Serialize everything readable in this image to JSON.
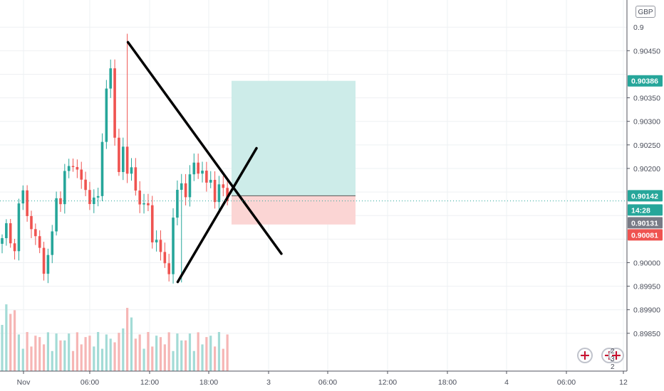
{
  "chart_data": {
    "type": "candlestick",
    "instrument_currency": "GBP",
    "price_axis": {
      "range": [
        0.89815,
        0.90535
      ],
      "ticks": [
        "0.90450",
        "0.90350",
        "0.90300",
        "0.90250",
        "0.90200",
        "0.90000",
        "0.89950",
        "0.89900",
        "0.89850"
      ],
      "top_partial_tick": "0.9",
      "grid": true
    },
    "time_axis": {
      "ticks": [
        "Nov",
        "06:00",
        "12:00",
        "18:00",
        "3",
        "06:00",
        "12:00",
        "18:00",
        "4",
        "06:00",
        "12"
      ],
      "grid": true
    },
    "price_tags": [
      {
        "label": "0.90386",
        "value": 0.90386,
        "color": "#26a69a"
      },
      {
        "label": "0.90142",
        "value": 0.90142,
        "color": "#26a69a"
      },
      {
        "label": "14:28",
        "value": 0.90117,
        "color": "#26a69a"
      },
      {
        "label": "0.90131",
        "value": 0.90131,
        "color": "#787b86"
      },
      {
        "label": "0.90081",
        "value": 0.90081,
        "color": "#ef5350"
      }
    ],
    "position_tool": {
      "entry": 0.90142,
      "target": 0.90386,
      "stop": 0.90081,
      "profit_color": "#cdece9",
      "loss_color": "#fbd5d4"
    },
    "drawn_lines": [
      {
        "name": "upper-trendline",
        "from": {
          "bar": 30,
          "price": 0.90468
        },
        "to": {
          "bar": 67,
          "price": 0.90019
        }
      },
      {
        "name": "lower-trendline",
        "from": {
          "bar": 42,
          "price": 0.89959
        },
        "to": {
          "bar": 61,
          "price": 0.90243
        }
      }
    ],
    "candles_summary": {
      "bars": 55,
      "start_price": 0.9004,
      "high": 0.90486,
      "low": 0.89958,
      "last": 0.90131
    },
    "colors": {
      "up": "#26a69a",
      "down": "#ef5350",
      "grid": "#eef0f3",
      "axis_line": "#50535e"
    },
    "badge_count": "2 3 2"
  }
}
